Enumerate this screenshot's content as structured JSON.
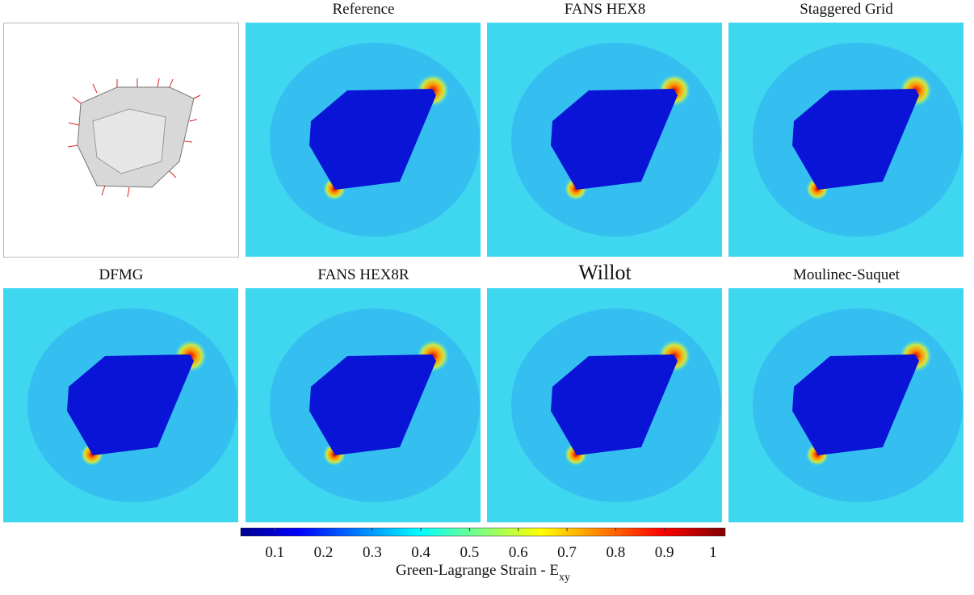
{
  "panels": [
    "Reference",
    "FANS HEX8",
    "Staggered Grid",
    "DFMG",
    "FANS HEX8R",
    "Willot",
    "Moulinec-Suquet"
  ],
  "colorbar": {
    "lim": [
      0.03,
      1.025
    ],
    "ticks": [
      0.1,
      0.2,
      0.3,
      0.4,
      0.5,
      0.6,
      0.7,
      0.8,
      0.9,
      1
    ],
    "label": "Green-Lagrange Strain - E",
    "label_subscript": "xy"
  }
}
